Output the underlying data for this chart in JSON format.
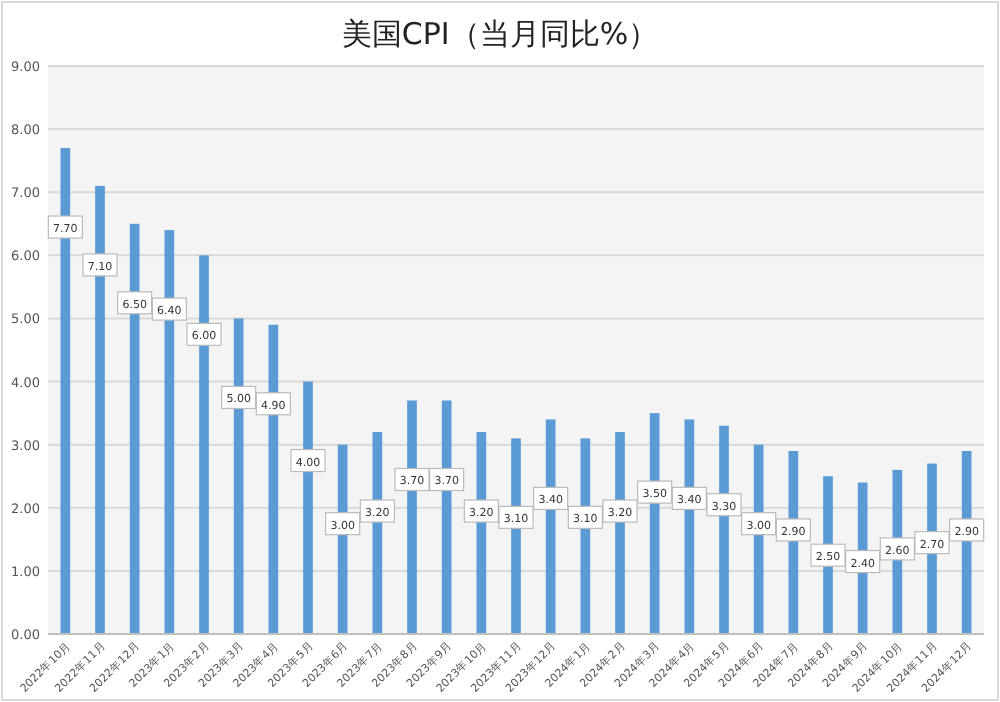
{
  "chart_data": {
    "type": "bar",
    "title": "美国CPI（当月同比%）",
    "categories": [
      "2022年10月",
      "2022年11月",
      "2022年12月",
      "2023年1月",
      "2023年2月",
      "2023年3月",
      "2023年4月",
      "2023年5月",
      "2023年6月",
      "2023年7月",
      "2023年8月",
      "2023年9月",
      "2023年10月",
      "2023年11月",
      "2023年12月",
      "2024年1月",
      "2024年2月",
      "2024年3月",
      "2024年4月",
      "2024年5月",
      "2024年6月",
      "2024年7月",
      "2024年8月",
      "2024年9月",
      "2024年10月",
      "2024年11月",
      "2024年12月"
    ],
    "values": [
      7.7,
      7.1,
      6.5,
      6.4,
      6.0,
      5.0,
      4.9,
      4.0,
      3.0,
      3.2,
      3.7,
      3.7,
      3.2,
      3.1,
      3.4,
      3.1,
      3.2,
      3.5,
      3.4,
      3.3,
      3.0,
      2.9,
      2.5,
      2.4,
      2.6,
      2.7,
      2.9
    ],
    "value_labels": [
      "7.70",
      "7.10",
      "6.50",
      "6.40",
      "6.00",
      "5.00",
      "4.90",
      "4.00",
      "3.00",
      "3.20",
      "3.70",
      "3.70",
      "3.20",
      "3.10",
      "3.40",
      "3.10",
      "3.20",
      "3.50",
      "3.40",
      "3.30",
      "3.00",
      "2.90",
      "2.50",
      "2.40",
      "2.60",
      "2.70",
      "2.90"
    ],
    "color": "#5b9bd5",
    "ylim": [
      0,
      9
    ],
    "yticks": [
      {
        "value": 0,
        "label": "0.00"
      },
      {
        "value": 1,
        "label": "1.00"
      },
      {
        "value": 2,
        "label": "2.00"
      },
      {
        "value": 3,
        "label": "3.00"
      },
      {
        "value": 4,
        "label": "4.00"
      },
      {
        "value": 5,
        "label": "5.00"
      },
      {
        "value": 6,
        "label": "6.00"
      },
      {
        "value": 7,
        "label": "7.00"
      },
      {
        "value": 8,
        "label": "8.00"
      },
      {
        "value": 9,
        "label": "9.00"
      }
    ],
    "grid": "y"
  }
}
